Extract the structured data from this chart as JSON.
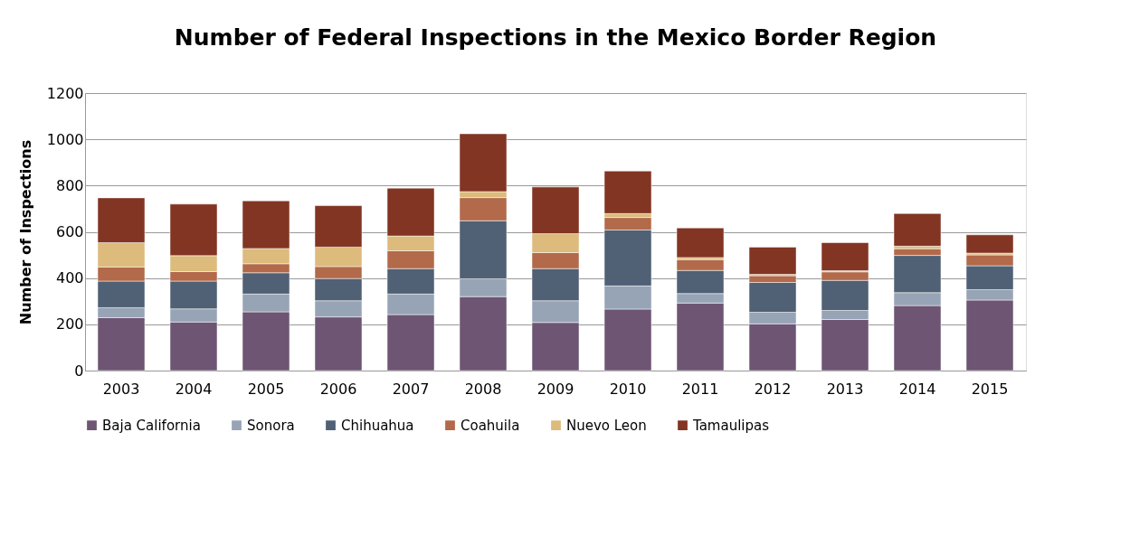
{
  "chart_data": {
    "type": "bar",
    "title": "Number of Federal Inspections in the Mexico Border Region",
    "ylabel": "Number of Inspections",
    "categories": [
      "2003",
      "2004",
      "2005",
      "2006",
      "2007",
      "2008",
      "2009",
      "2010",
      "2011",
      "2012",
      "2013",
      "2014",
      "2015"
    ],
    "stacked": true,
    "ylim": [
      0,
      1200
    ],
    "yticks": [
      0,
      200,
      400,
      600,
      800,
      1000,
      1200
    ],
    "grid": "y",
    "legend": "bottom",
    "series": [
      {
        "name": "Baja California",
        "color": "#6e5573",
        "values": [
          229,
          210,
          254,
          232,
          242,
          320,
          208,
          266,
          292,
          202,
          221,
          281,
          305
        ]
      },
      {
        "name": "Sonora",
        "color": "#97a4b6",
        "values": [
          43,
          57,
          77,
          70,
          89,
          77,
          94,
          100,
          41,
          50,
          39,
          56,
          45
        ]
      },
      {
        "name": "Chihuahua",
        "color": "#506075",
        "values": [
          115,
          120,
          92,
          96,
          110,
          251,
          139,
          242,
          100,
          129,
          130,
          161,
          103
        ]
      },
      {
        "name": "Coahuila",
        "color": "#b26a4b",
        "values": [
          61,
          41,
          39,
          52,
          77,
          100,
          69,
          54,
          47,
          29,
          37,
          29,
          47
        ]
      },
      {
        "name": "Nuevo Leon",
        "color": "#dcbb7c",
        "values": [
          105,
          69,
          66,
          84,
          64,
          26,
          82,
          17,
          9,
          6,
          5,
          11,
          8
        ]
      },
      {
        "name": "Tamaulipas",
        "color": "#823523",
        "values": [
          194,
          223,
          206,
          179,
          207,
          250,
          202,
          184,
          128,
          118,
          121,
          141,
          79
        ]
      }
    ]
  }
}
